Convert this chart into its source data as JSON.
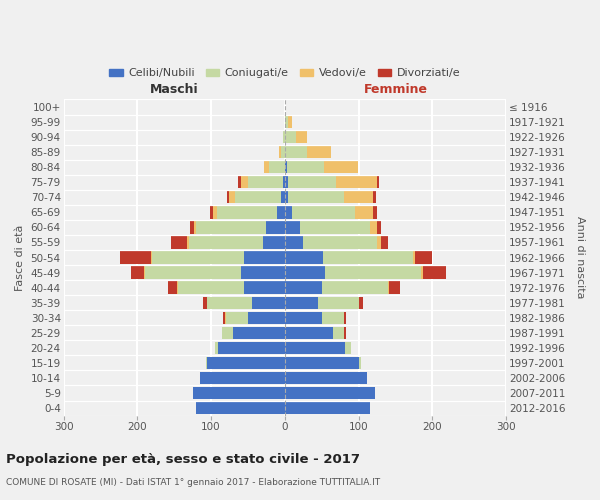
{
  "age_groups": [
    "100+",
    "95-99",
    "90-94",
    "85-89",
    "80-84",
    "75-79",
    "70-74",
    "65-69",
    "60-64",
    "55-59",
    "50-54",
    "45-49",
    "40-44",
    "35-39",
    "30-34",
    "25-29",
    "20-24",
    "15-19",
    "10-14",
    "5-9",
    "0-4"
  ],
  "birth_years": [
    "≤ 1916",
    "1917-1921",
    "1922-1926",
    "1927-1931",
    "1932-1936",
    "1937-1941",
    "1942-1946",
    "1947-1951",
    "1952-1956",
    "1957-1961",
    "1962-1966",
    "1967-1971",
    "1972-1976",
    "1977-1981",
    "1982-1986",
    "1987-1991",
    "1992-1996",
    "1997-2001",
    "2002-2006",
    "2007-2011",
    "2012-2016"
  ],
  "male_celibe": [
    0,
    0,
    0,
    0,
    0,
    2,
    5,
    10,
    25,
    30,
    55,
    60,
    55,
    45,
    50,
    70,
    90,
    105,
    115,
    125,
    120
  ],
  "male_coniugato": [
    0,
    0,
    2,
    5,
    22,
    48,
    62,
    82,
    95,
    100,
    125,
    130,
    90,
    60,
    30,
    15,
    5,
    2,
    0,
    0,
    0
  ],
  "male_vedovo": [
    0,
    0,
    0,
    3,
    6,
    10,
    8,
    5,
    3,
    2,
    1,
    1,
    1,
    1,
    1,
    0,
    0,
    0,
    0,
    0,
    0
  ],
  "male_divorziato": [
    0,
    0,
    0,
    0,
    0,
    3,
    4,
    5,
    5,
    22,
    42,
    18,
    12,
    5,
    3,
    0,
    0,
    0,
    0,
    0,
    0
  ],
  "female_celibe": [
    0,
    0,
    0,
    0,
    3,
    5,
    5,
    10,
    20,
    25,
    52,
    55,
    50,
    45,
    50,
    65,
    82,
    100,
    112,
    122,
    115
  ],
  "female_coniugata": [
    0,
    5,
    15,
    30,
    50,
    65,
    75,
    85,
    95,
    100,
    122,
    130,
    90,
    55,
    30,
    15,
    8,
    3,
    0,
    0,
    0
  ],
  "female_vedova": [
    0,
    5,
    15,
    32,
    46,
    55,
    40,
    25,
    10,
    5,
    3,
    2,
    1,
    1,
    0,
    0,
    0,
    0,
    0,
    0,
    0
  ],
  "female_divorziata": [
    0,
    0,
    0,
    0,
    0,
    3,
    3,
    5,
    5,
    10,
    22,
    32,
    15,
    5,
    3,
    3,
    0,
    0,
    0,
    0,
    0
  ],
  "colors": {
    "celibe": "#4472C4",
    "coniugato": "#c5d9a3",
    "vedovo": "#f0c06a",
    "divorziato": "#c0392b"
  },
  "title": "Popolazione per età, sesso e stato civile - 2017",
  "subtitle": "COMUNE DI ROSATE (MI) - Dati ISTAT 1° gennaio 2017 - Elaborazione TUTTITALIA.IT",
  "xlabel_left": "Maschi",
  "xlabel_right": "Femmine",
  "ylabel_left": "Fasce di età",
  "ylabel_right": "Anni di nascita",
  "xlim": 300,
  "bg_color": "#f0f0f0",
  "grid_color": "#ffffff"
}
